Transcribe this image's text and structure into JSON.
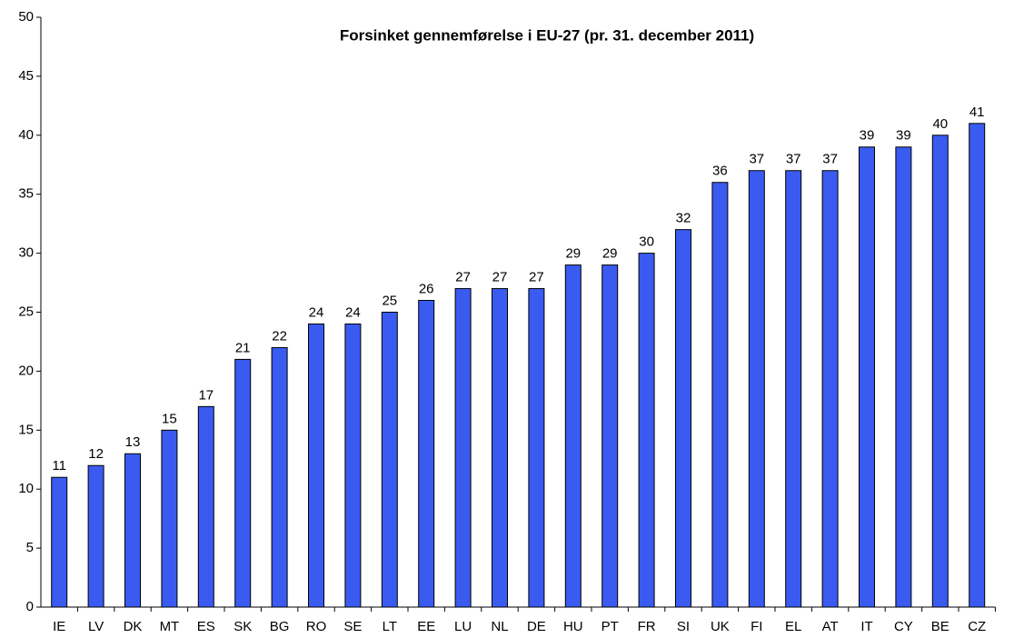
{
  "chart_data": {
    "type": "bar",
    "title": "Forsinket gennemførelse i EU-27 (pr. 31. december 2011)",
    "categories": [
      "IE",
      "LV",
      "DK",
      "MT",
      "ES",
      "SK",
      "BG",
      "RO",
      "SE",
      "LT",
      "EE",
      "LU",
      "NL",
      "DE",
      "HU",
      "PT",
      "FR",
      "SI",
      "UK",
      "FI",
      "EL",
      "AT",
      "IT",
      "CY",
      "BE",
      "CZ"
    ],
    "values": [
      11,
      12,
      13,
      15,
      17,
      21,
      22,
      24,
      24,
      25,
      26,
      27,
      27,
      27,
      29,
      29,
      30,
      32,
      36,
      37,
      37,
      37,
      39,
      39,
      40,
      41
    ],
    "color": "#3a5bf0",
    "ylim": [
      0,
      50
    ],
    "yticks": [
      0,
      5,
      10,
      15,
      20,
      25,
      30,
      35,
      40,
      45,
      50
    ],
    "grid": false
  }
}
